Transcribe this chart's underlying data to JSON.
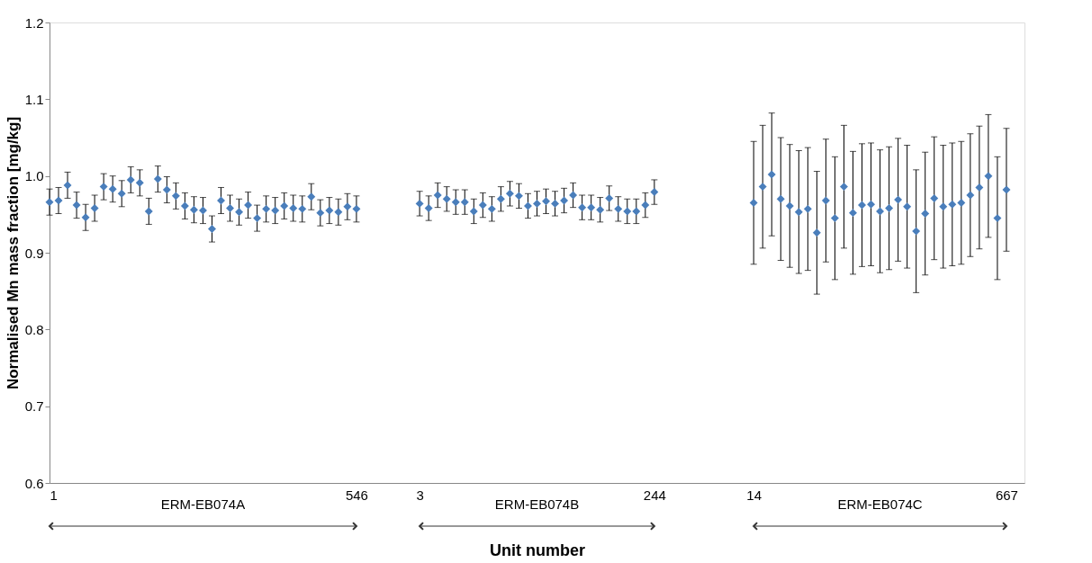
{
  "chart_data": {
    "type": "scatter",
    "xlabel": "Unit number",
    "ylabel": "Normalised Mn mass fraction  [mg/kg]",
    "categories": [
      "1",
      null,
      null,
      null,
      null,
      null,
      null,
      null,
      null,
      null,
      null,
      null,
      null,
      null,
      null,
      null,
      null,
      null,
      null,
      null,
      null,
      null,
      null,
      null,
      null,
      null,
      null,
      null,
      null,
      null,
      null,
      null,
      null,
      null,
      "546",
      null,
      null,
      null,
      null,
      null,
      null,
      "3",
      null,
      null,
      null,
      null,
      null,
      null,
      null,
      null,
      null,
      null,
      null,
      null,
      null,
      null,
      null,
      null,
      null,
      null,
      null,
      null,
      null,
      null,
      null,
      null,
      null,
      "244",
      null,
      null,
      null,
      null,
      null,
      null,
      null,
      null,
      null,
      null,
      "14",
      null,
      null,
      null,
      null,
      null,
      null,
      null,
      null,
      null,
      null,
      null,
      null,
      null,
      null,
      null,
      null,
      null,
      null,
      null,
      null,
      null,
      null,
      null,
      null,
      null,
      null,
      null,
      "667",
      null,
      null
    ],
    "values": [
      0.966,
      0.968,
      0.988,
      0.962,
      0.946,
      0.958,
      0.986,
      0.983,
      0.977,
      0.995,
      0.991,
      0.954,
      0.996,
      0.982,
      0.974,
      0.961,
      0.956,
      0.955,
      0.931,
      0.968,
      0.958,
      0.953,
      0.962,
      0.945,
      0.957,
      0.955,
      0.961,
      0.958,
      0.957,
      0.973,
      0.952,
      0.955,
      0.953,
      0.96,
      0.957,
      null,
      null,
      null,
      null,
      null,
      null,
      0.964,
      0.958,
      0.975,
      0.97,
      0.966,
      0.966,
      0.954,
      0.962,
      0.957,
      0.97,
      0.977,
      0.974,
      0.961,
      0.964,
      0.967,
      0.964,
      0.968,
      0.975,
      0.959,
      0.959,
      0.956,
      0.971,
      0.957,
      0.954,
      0.954,
      0.962,
      0.979,
      null,
      null,
      null,
      null,
      null,
      null,
      null,
      null,
      null,
      null,
      0.965,
      0.986,
      1.002,
      0.97,
      0.961,
      0.953,
      0.957,
      0.926,
      0.968,
      0.945,
      0.986,
      0.952,
      0.962,
      0.963,
      0.954,
      0.958,
      0.969,
      0.96,
      0.928,
      0.951,
      0.971,
      0.96,
      0.963,
      0.965,
      0.975,
      0.985,
      1.0,
      0.945,
      0.982,
      null,
      null
    ],
    "errors": [
      0.017,
      0.017,
      0.017,
      0.017,
      0.017,
      0.017,
      0.017,
      0.017,
      0.017,
      0.017,
      0.017,
      0.017,
      0.017,
      0.017,
      0.017,
      0.017,
      0.017,
      0.017,
      0.017,
      0.017,
      0.017,
      0.017,
      0.017,
      0.017,
      0.017,
      0.017,
      0.017,
      0.017,
      0.017,
      0.017,
      0.017,
      0.017,
      0.017,
      0.017,
      0.017,
      null,
      null,
      null,
      null,
      null,
      null,
      0.016,
      0.016,
      0.016,
      0.016,
      0.016,
      0.016,
      0.016,
      0.016,
      0.016,
      0.016,
      0.016,
      0.016,
      0.016,
      0.016,
      0.016,
      0.016,
      0.016,
      0.016,
      0.016,
      0.016,
      0.016,
      0.016,
      0.016,
      0.016,
      0.016,
      0.016,
      0.016,
      null,
      null,
      null,
      null,
      null,
      null,
      null,
      null,
      null,
      null,
      0.08,
      0.08,
      0.08,
      0.08,
      0.08,
      0.08,
      0.08,
      0.08,
      0.08,
      0.08,
      0.08,
      0.08,
      0.08,
      0.08,
      0.08,
      0.08,
      0.08,
      0.08,
      0.08,
      0.08,
      0.08,
      0.08,
      0.08,
      0.08,
      0.08,
      0.08,
      0.08,
      0.08,
      0.08,
      null,
      null
    ],
    "color": "#4a7ebb",
    "marker": "diamond",
    "grid": false,
    "ylim": [
      0.6,
      1.2
    ],
    "yticks": [
      0.6,
      0.7,
      0.8,
      0.9,
      {
        "value": 1.0,
        "label": "1.0"
      },
      1.1,
      1.2
    ],
    "annotations": [
      "ERM-EB074A",
      "ERM-EB074B",
      "ERM-EB074C"
    ]
  }
}
